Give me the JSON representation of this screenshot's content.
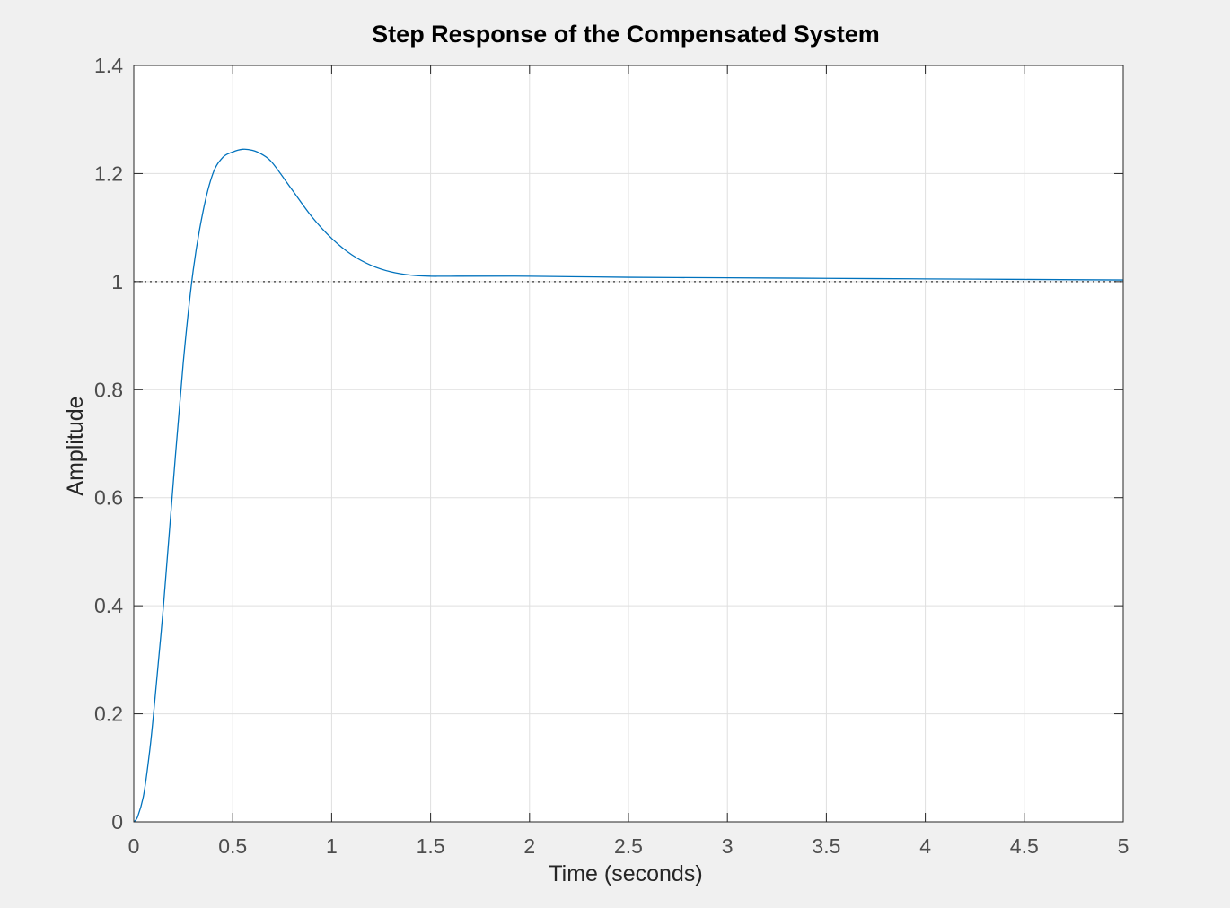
{
  "chart_data": {
    "type": "line",
    "title": "Step Response of the Compensated System",
    "xlabel": "Time (seconds)",
    "ylabel": "Amplitude",
    "xlim": [
      0,
      5
    ],
    "ylim": [
      0,
      1.4
    ],
    "xticks": [
      0,
      0.5,
      1,
      1.5,
      2,
      2.5,
      3,
      3.5,
      4,
      4.5,
      5
    ],
    "xtick_labels": [
      "0",
      "0.5",
      "1",
      "1.5",
      "2",
      "2.5",
      "3",
      "3.5",
      "4",
      "4.5",
      "5"
    ],
    "yticks": [
      0,
      0.2,
      0.4,
      0.6,
      0.8,
      1,
      1.2,
      1.4
    ],
    "ytick_labels": [
      "0",
      "0.2",
      "0.4",
      "0.6",
      "0.8",
      "1",
      "1.2",
      "1.4"
    ],
    "grid": true,
    "reference_line": {
      "y": 1,
      "style": "dotted",
      "color": "#333333"
    },
    "series": [
      {
        "color": "#0072bd",
        "x": [
          0,
          0.02,
          0.05,
          0.08,
          0.1,
          0.15,
          0.2,
          0.25,
          0.3,
          0.35,
          0.4,
          0.45,
          0.5,
          0.55,
          0.6,
          0.65,
          0.7,
          0.8,
          0.9,
          1.0,
          1.1,
          1.2,
          1.3,
          1.4,
          1.5,
          1.6,
          2.0,
          2.5,
          3.0,
          3.5,
          4.0,
          4.5,
          5.0
        ],
        "y": [
          0,
          0.01,
          0.05,
          0.13,
          0.2,
          0.4,
          0.63,
          0.85,
          1.02,
          1.13,
          1.2,
          1.23,
          1.24,
          1.245,
          1.243,
          1.235,
          1.22,
          1.17,
          1.12,
          1.08,
          1.05,
          1.03,
          1.018,
          1.012,
          1.01,
          1.01,
          1.01,
          1.008,
          1.007,
          1.006,
          1.005,
          1.004,
          1.003
        ]
      }
    ]
  }
}
